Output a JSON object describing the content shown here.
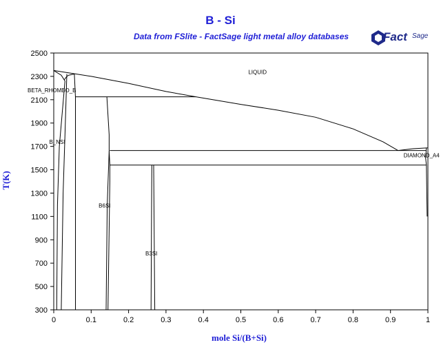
{
  "header": {
    "title": "B - Si",
    "subtitle": "Data from FSlite - FactSage light metal alloy databases",
    "logo_text": "Fact",
    "logo_sup": "Sage",
    "logo_reg": "®"
  },
  "colors": {
    "title": "#1f1fd6",
    "axis": "#000000",
    "curve": "#000000",
    "logo": "#1f2a8a"
  },
  "chart_data": {
    "type": "line",
    "title": "B - Si",
    "xlabel": "mole Si/(B+Si)",
    "ylabel": "T(K)",
    "xlim": [
      0,
      1
    ],
    "ylim": [
      300,
      2500
    ],
    "x_ticks": [
      "0",
      "0.1",
      "0.2",
      "0.3",
      "0.4",
      "0.5",
      "0.6",
      "0.7",
      "0.8",
      "0.9",
      "1"
    ],
    "y_ticks": [
      "300",
      "500",
      "700",
      "900",
      "1100",
      "1300",
      "1500",
      "1700",
      "1900",
      "2100",
      "2300",
      "2500"
    ],
    "x_tick_values": [
      0,
      0.1,
      0.2,
      0.3,
      0.4,
      0.5,
      0.6,
      0.7,
      0.8,
      0.9,
      1.0
    ],
    "y_tick_values": [
      300,
      500,
      700,
      900,
      1100,
      1300,
      1500,
      1700,
      1900,
      2100,
      2300,
      2500
    ],
    "phase_labels": [
      {
        "text": "LIQUID",
        "x": 0.52,
        "y": 2320
      },
      {
        "text": "BETA_RHOMBO_B",
        "x": -0.07,
        "y": 2165
      },
      {
        "text": "B_NSI",
        "x": -0.012,
        "y": 1720
      },
      {
        "text": "B6SI",
        "x": 0.12,
        "y": 1175
      },
      {
        "text": "B3SI",
        "x": 0.245,
        "y": 765
      },
      {
        "text": "DIAMOND_A4",
        "x": 0.935,
        "y": 1605
      }
    ],
    "series": [
      {
        "values": [
          [
            0,
            2350
          ],
          [
            0.02,
            2340
          ],
          [
            0.06,
            2320
          ],
          [
            0.1,
            2300
          ],
          [
            0.2,
            2240
          ],
          [
            0.3,
            2170
          ],
          [
            0.38,
            2125
          ],
          [
            0.5,
            2060
          ],
          [
            0.6,
            2010
          ],
          [
            0.7,
            1950
          ],
          [
            0.8,
            1850
          ],
          [
            0.88,
            1740
          ],
          [
            0.92,
            1665
          ]
        ]
      },
      {
        "values": [
          [
            0.92,
            1665
          ],
          [
            0.96,
            1680
          ],
          [
            1.0,
            1687
          ]
        ]
      },
      {
        "values": [
          [
            0,
            2350
          ],
          [
            0.02,
            2310
          ],
          [
            0.03,
            2260
          ]
        ]
      },
      {
        "values": [
          [
            0.03,
            2260
          ],
          [
            0.015,
            1700
          ],
          [
            0.01,
            1200
          ],
          [
            0.008,
            300
          ]
        ]
      },
      {
        "values": [
          [
            0.035,
            2320
          ],
          [
            0.03,
            1800
          ],
          [
            0.025,
            1300
          ],
          [
            0.02,
            300
          ]
        ]
      },
      {
        "values": [
          [
            0.055,
            2320
          ],
          [
            0.058,
            2120
          ],
          [
            0.058,
            300
          ]
        ]
      },
      {
        "values": [
          [
            0.055,
            2320
          ],
          [
            0.04,
            2310
          ],
          [
            0.035,
            2300
          ],
          [
            0.028,
            2270
          ]
        ]
      },
      {
        "values": [
          [
            0.058,
            2125
          ],
          [
            0.38,
            2125
          ]
        ]
      },
      {
        "values": [
          [
            0.142,
            2125
          ],
          [
            0.148,
            1800
          ],
          [
            0.148,
            1660
          ],
          [
            0.143,
            1200
          ],
          [
            0.14,
            300
          ]
        ]
      },
      {
        "values": [
          [
            0.148,
            1660
          ],
          [
            0.15,
            1540
          ],
          [
            0.15,
            1400
          ],
          [
            0.145,
            300
          ]
        ]
      },
      {
        "values": [
          [
            0.15,
            1665
          ],
          [
            0.996,
            1665
          ]
        ]
      },
      {
        "values": [
          [
            0.15,
            1540
          ],
          [
            0.996,
            1540
          ]
        ]
      },
      {
        "values": [
          [
            0.262,
            1540
          ],
          [
            0.26,
            300
          ]
        ]
      },
      {
        "values": [
          [
            0.267,
            1540
          ],
          [
            0.27,
            300
          ]
        ]
      },
      {
        "values": [
          [
            0.996,
            1687
          ],
          [
            0.994,
            1600
          ],
          [
            0.996,
            1540
          ],
          [
            0.998,
            1100
          ]
        ]
      }
    ]
  }
}
